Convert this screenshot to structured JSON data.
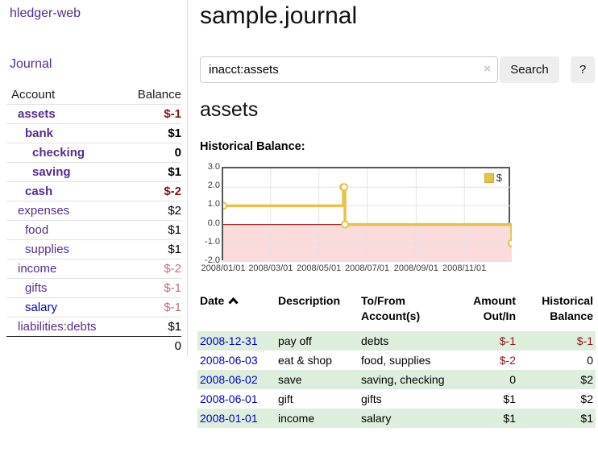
{
  "app": {
    "title": "hledger-web"
  },
  "colors": {
    "brand_purple": "#542d8f",
    "link_blue": "#0000cc",
    "negative_strong": "#801515",
    "negative_soft": "#bf6e6e",
    "row_green": "#ddeedd",
    "chart_line": "#e8c240",
    "chart_negative_fill": "#fbdbdb",
    "chart_zero_line": "#a40000",
    "gridline": "#e3e3e3"
  },
  "sidebar": {
    "journal_label": "Journal",
    "account_header": "Account",
    "balance_header": "Balance",
    "accounts": [
      {
        "name": "assets",
        "level": 1,
        "bold": true,
        "balance": "$-1",
        "negative": "strong"
      },
      {
        "name": "bank",
        "level": 2,
        "bold": true,
        "balance": "$1"
      },
      {
        "name": "checking",
        "level": 3,
        "bold": true,
        "balance": "0"
      },
      {
        "name": "saving",
        "level": 3,
        "bold": true,
        "balance": "$1"
      },
      {
        "name": "cash",
        "level": 2,
        "bold": true,
        "balance": "$-2",
        "negative": "strong"
      },
      {
        "name": "expenses",
        "level": 1,
        "bold": false,
        "balance": "$2"
      },
      {
        "name": "food",
        "level": 2,
        "bold": false,
        "balance": "$1"
      },
      {
        "name": "supplies",
        "level": 2,
        "bold": false,
        "balance": "$1"
      },
      {
        "name": "income",
        "level": 1,
        "bold": false,
        "balance": "$-2",
        "negative": "soft"
      },
      {
        "name": "gifts",
        "level": 2,
        "bold": false,
        "balance": "$-1",
        "negative": "soft"
      },
      {
        "name": "salary",
        "level": 2,
        "bold": false,
        "balance": "$-1",
        "negative": "soft",
        "link_color": "blue"
      },
      {
        "name": "liabilities:debts",
        "level": 1,
        "bold": false,
        "balance": "$1"
      }
    ],
    "total": "0"
  },
  "main": {
    "title": "sample.journal",
    "search": {
      "value": "inacct:assets",
      "clear_icon": "×",
      "button_label": "Search",
      "help_label": "?"
    },
    "account_heading": "assets",
    "chart_label": "Historical Balance:"
  },
  "chart_data": {
    "type": "line",
    "title": "Historical Balance:",
    "step": true,
    "xlim": [
      "2008-01-01",
      "2008-12-31"
    ],
    "ylim": [
      -2,
      3
    ],
    "yticks": [
      "3.0",
      "2.0",
      "1.0",
      "0.0",
      "-1.0",
      "-2.0"
    ],
    "xticks": [
      "2008/01/01",
      "2008/03/01",
      "2008/05/01",
      "2008/07/01",
      "2008/09/01",
      "2008/11/01"
    ],
    "legend_position": "top-right",
    "grid": true,
    "negative_region_color": "#fbdbdb",
    "zero_line_color": "#a40000",
    "series": [
      {
        "name": "$",
        "color": "#e8c240",
        "points": [
          [
            "2008-01-01",
            1
          ],
          [
            "2008-06-01",
            2
          ],
          [
            "2008-06-02",
            2
          ],
          [
            "2008-06-03",
            0
          ],
          [
            "2008-12-31",
            -1
          ]
        ]
      }
    ]
  },
  "register": {
    "columns": [
      {
        "label": "Date",
        "sorted": "asc"
      },
      {
        "label": "Description"
      },
      {
        "label": "To/From Account(s)"
      },
      {
        "label": "Amount Out/In",
        "numeric": true
      },
      {
        "label": "Historical Balance",
        "numeric": true
      }
    ],
    "rows": [
      {
        "date": "2008-12-31",
        "description": "pay off",
        "accounts": "debts",
        "amount": "$-1",
        "amount_neg": true,
        "balance": "$-1",
        "balance_neg": true
      },
      {
        "date": "2008-06-03",
        "description": "eat & shop",
        "accounts": "food, supplies",
        "amount": "$-2",
        "amount_neg": true,
        "balance": "0",
        "balance_neg": false
      },
      {
        "date": "2008-06-02",
        "description": "save",
        "accounts": "saving, checking",
        "amount": "0",
        "amount_neg": false,
        "balance": "$2",
        "balance_neg": false
      },
      {
        "date": "2008-06-01",
        "description": "gift",
        "accounts": "gifts",
        "amount": "$1",
        "amount_neg": false,
        "balance": "$2",
        "balance_neg": false
      },
      {
        "date": "2008-01-01",
        "description": "income",
        "accounts": "salary",
        "amount": "$1",
        "amount_neg": false,
        "balance": "$1",
        "balance_neg": false
      }
    ]
  }
}
